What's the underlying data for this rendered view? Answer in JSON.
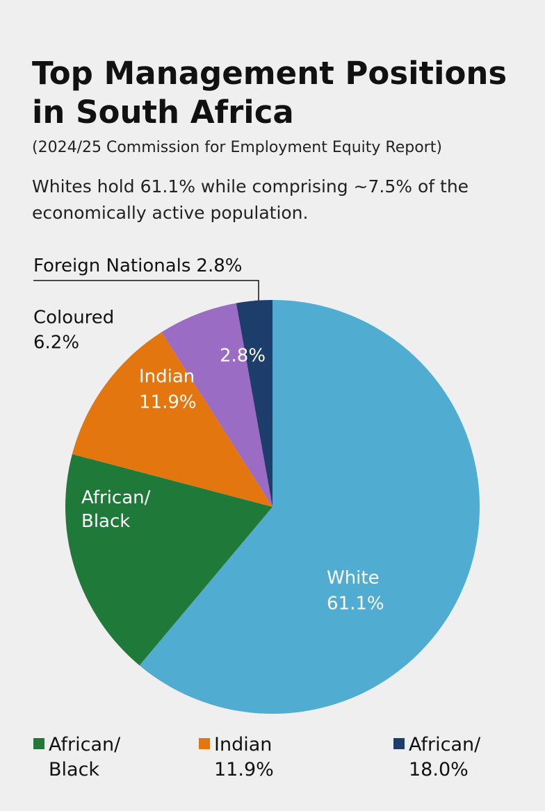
{
  "chart_data": {
    "type": "pie",
    "title": "Top Management Positions in South Africa",
    "subtitle": "(2024/25 Commission for Employment Equity Report)",
    "note": "Whites hold 61.1% while comprising ~7.5% of the economically active population.",
    "categories": [
      "White",
      "African/\nBlack",
      "Indian",
      "Coloured",
      "Foreign Nationals"
    ],
    "values": [
      61.1,
      18.0,
      11.9,
      6.2,
      2.8
    ],
    "value_labels": [
      "61.1%",
      null,
      "11.9%",
      "6.2%",
      "2.8%"
    ],
    "colors": [
      "#51acd1",
      "#1f7a3a",
      "#e3760f",
      "#9a6cc3",
      "#1d3e6a"
    ],
    "annotations": [
      {
        "text": "2.8%"
      }
    ],
    "legend_items": [
      {
        "label": "African/\nBlack",
        "color": "#1f7a3a"
      },
      {
        "label": "Indian\n11.9%",
        "color": "#e3760f"
      },
      {
        "label": "African/\n18.0%",
        "color": "#1d3e6a"
      }
    ]
  }
}
